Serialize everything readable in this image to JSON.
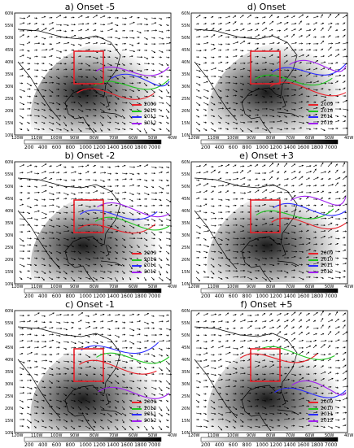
{
  "lat_labels": [
    "60N",
    "55N",
    "50N",
    "45N",
    "40N",
    "35N",
    "30N",
    "25N",
    "20N",
    "15N",
    "10N"
  ],
  "lon_labels": [
    "120W",
    "110W",
    "100W",
    "90W",
    "80W",
    "70W",
    "60W",
    "50W",
    "40W"
  ],
  "colorbar_labels": [
    "200",
    "400",
    "600",
    "800",
    "1000",
    "1200",
    "1400",
    "1600",
    "1800",
    "7000"
  ],
  "legend": [
    {
      "year": "2009",
      "color": "#e8212a"
    },
    {
      "year": "2010",
      "color": "#1fc41f"
    },
    {
      "year": "2011",
      "color": "#2a2aff"
    },
    {
      "year": "2012",
      "color": "#a020f0"
    }
  ],
  "panels": [
    {
      "id": "a",
      "title": "a)  Onset -5"
    },
    {
      "id": "d",
      "title": "d)  Onset"
    },
    {
      "id": "b",
      "title": "b)  Onset -2"
    },
    {
      "id": "e",
      "title": "e)  Onset +3"
    },
    {
      "id": "c",
      "title": "c)  Onset -1"
    },
    {
      "id": "f",
      "title": "f)  Onset +5"
    }
  ],
  "box_color": "#e8212a"
}
